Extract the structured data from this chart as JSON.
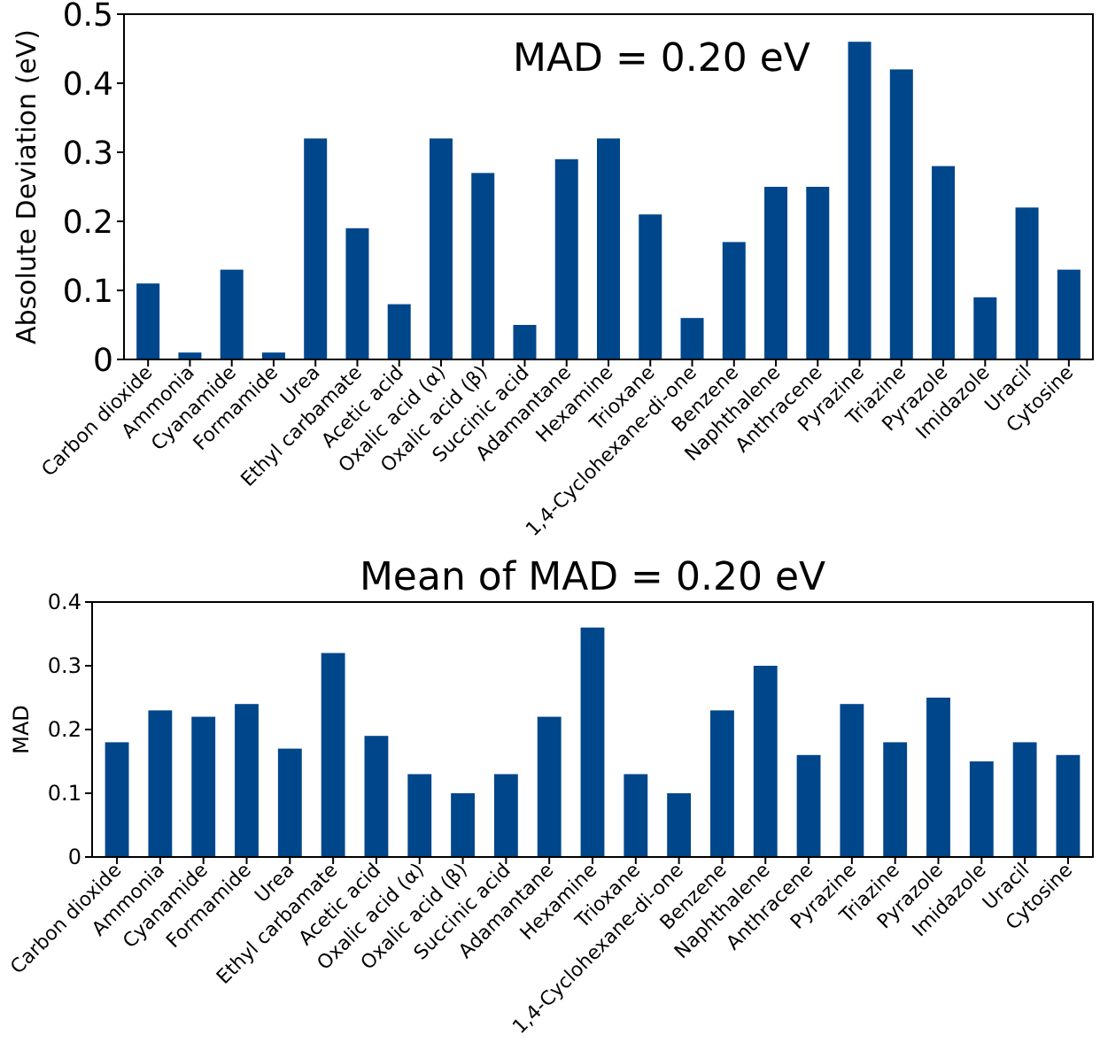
{
  "chart_data": [
    {
      "type": "bar",
      "ylabel": "Absolute Deviation (eV)",
      "annotations": [
        "MAD = 0.20 eV"
      ],
      "categories": [
        "Carbon dioxide",
        "Ammonia",
        "Cyanamide",
        "Formamide",
        "Urea",
        "Ethyl carbamate",
        "Acetic acid",
        "Oxalic acid (α)",
        "Oxalic acid (β)",
        "Succinic acid",
        "Adamantane",
        "Hexamine",
        "Trioxane",
        "1,4-Cyclohexane-di-one",
        "Benzene",
        "Naphthalene",
        "Anthracene",
        "Pyrazine",
        "Triazine",
        "Pyrazole",
        "Imidazole",
        "Uracil",
        "Cytosine"
      ],
      "values": [
        0.11,
        0.01,
        0.13,
        0.01,
        0.32,
        0.19,
        0.08,
        0.32,
        0.27,
        0.05,
        0.29,
        0.32,
        0.21,
        0.06,
        0.17,
        0.25,
        0.25,
        0.46,
        0.42,
        0.28,
        0.09,
        0.22,
        0.13
      ],
      "color": "#00468b",
      "ylim": [
        0,
        0.5
      ],
      "yticks": [
        0,
        0.1,
        0.2,
        0.3,
        0.4,
        0.5
      ]
    },
    {
      "type": "bar",
      "title": "Mean of MAD = 0.20 eV",
      "ylabel": "MAD",
      "categories": [
        "Carbon dioxide",
        "Ammonia",
        "Cyanamide",
        "Formamide",
        "Urea",
        "Ethyl carbamate",
        "Acetic acid",
        "Oxalic acid (α)",
        "Oxalic acid (β)",
        "Succinic acid",
        "Adamantane",
        "Hexamine",
        "Trioxane",
        "1,4-Cyclohexane-di-one",
        "Benzene",
        "Naphthalene",
        "Anthracene",
        "Pyrazine",
        "Triazine",
        "Pyrazole",
        "Imidazole",
        "Uracil",
        "Cytosine"
      ],
      "values": [
        0.18,
        0.23,
        0.22,
        0.24,
        0.17,
        0.32,
        0.19,
        0.13,
        0.1,
        0.13,
        0.22,
        0.36,
        0.13,
        0.1,
        0.23,
        0.3,
        0.16,
        0.24,
        0.18,
        0.25,
        0.15,
        0.18,
        0.16
      ],
      "color": "#00468b",
      "ylim": [
        0,
        0.4
      ],
      "yticks": [
        0,
        0.1,
        0.2,
        0.3,
        0.4
      ]
    }
  ]
}
